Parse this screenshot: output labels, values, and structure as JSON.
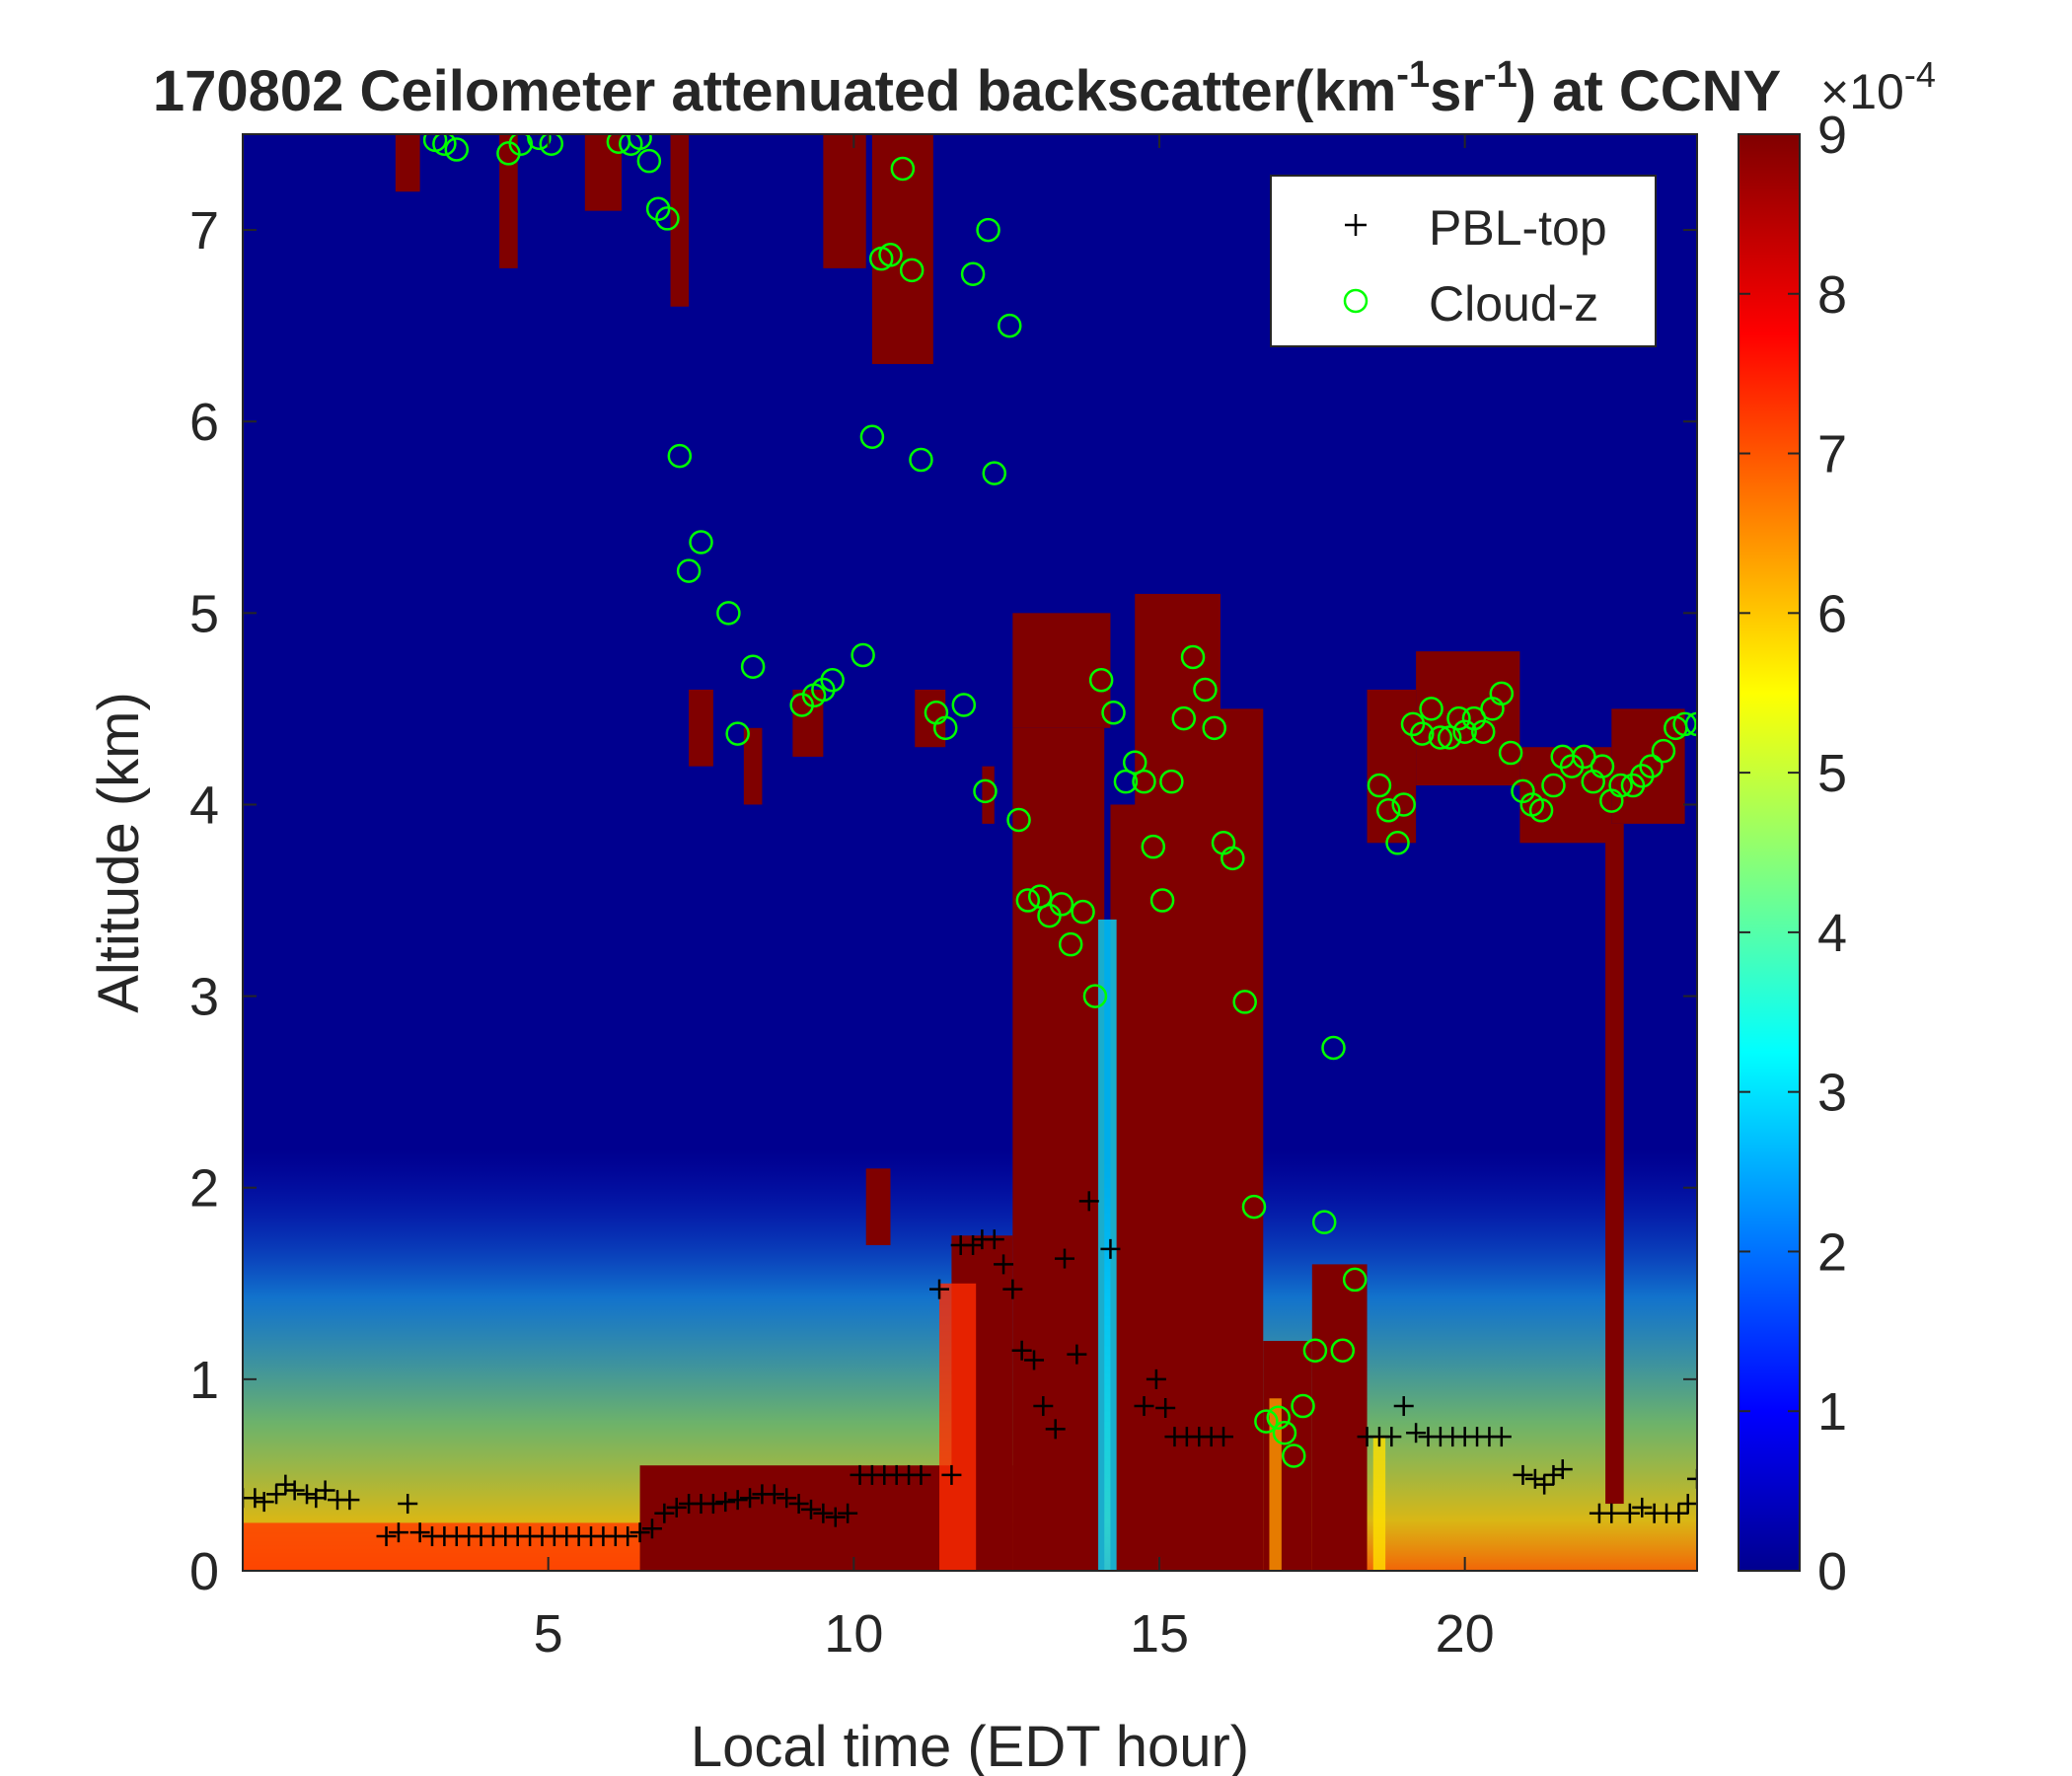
{
  "chart_data": {
    "type": "heatmap",
    "title": {
      "prefix": "170802 Ceilometer attenuated backscatter(km",
      "sup1": "-1",
      "mid": "sr",
      "sup2": "-1",
      "suffix": ") at CCNY"
    },
    "xlabel": "Local time (EDT hour)",
    "ylabel": "Altitude (km)",
    "xlim": [
      0,
      23.8
    ],
    "ylim": [
      0,
      7.5
    ],
    "x_ticks": [
      5,
      10,
      15,
      20
    ],
    "y_ticks": [
      0,
      1,
      2,
      3,
      4,
      5,
      6,
      7
    ],
    "colorbar": {
      "colormap": "jet",
      "range": [
        0,
        9
      ],
      "ticks": [
        0,
        1,
        2,
        3,
        4,
        5,
        6,
        7,
        8,
        9
      ],
      "exponent_label": {
        "base": "×10",
        "exp": "-4"
      }
    },
    "legend": {
      "location": "top-right",
      "entries": [
        {
          "label": "PBL-top",
          "marker": "+",
          "color": "#000000"
        },
        {
          "label": "Cloud-z",
          "marker": "o",
          "color": "#00ff00"
        }
      ]
    },
    "series": [
      {
        "name": "PBL-top",
        "points": [
          [
            0.0,
            0.38
          ],
          [
            0.2,
            0.38
          ],
          [
            0.35,
            0.36
          ],
          [
            0.55,
            0.4
          ],
          [
            0.7,
            0.45
          ],
          [
            0.85,
            0.42
          ],
          [
            1.05,
            0.4
          ],
          [
            1.2,
            0.38
          ],
          [
            1.35,
            0.42
          ],
          [
            1.55,
            0.37
          ],
          [
            1.75,
            0.37
          ],
          [
            2.35,
            0.18
          ],
          [
            2.55,
            0.2
          ],
          [
            2.7,
            0.35
          ],
          [
            2.9,
            0.2
          ],
          [
            3.1,
            0.18
          ],
          [
            3.3,
            0.18
          ],
          [
            3.5,
            0.18
          ],
          [
            3.7,
            0.18
          ],
          [
            3.9,
            0.18
          ],
          [
            4.1,
            0.18
          ],
          [
            4.3,
            0.18
          ],
          [
            4.5,
            0.18
          ],
          [
            4.7,
            0.18
          ],
          [
            4.9,
            0.18
          ],
          [
            5.1,
            0.18
          ],
          [
            5.3,
            0.18
          ],
          [
            5.5,
            0.18
          ],
          [
            5.7,
            0.18
          ],
          [
            5.9,
            0.18
          ],
          [
            6.1,
            0.18
          ],
          [
            6.3,
            0.18
          ],
          [
            6.5,
            0.2
          ],
          [
            6.7,
            0.22
          ],
          [
            6.9,
            0.3
          ],
          [
            7.1,
            0.33
          ],
          [
            7.3,
            0.35
          ],
          [
            7.5,
            0.35
          ],
          [
            7.7,
            0.35
          ],
          [
            7.9,
            0.36
          ],
          [
            8.1,
            0.37
          ],
          [
            8.3,
            0.38
          ],
          [
            8.5,
            0.4
          ],
          [
            8.7,
            0.4
          ],
          [
            8.9,
            0.38
          ],
          [
            9.1,
            0.35
          ],
          [
            9.3,
            0.32
          ],
          [
            9.5,
            0.3
          ],
          [
            9.7,
            0.28
          ],
          [
            9.9,
            0.3
          ],
          [
            10.1,
            0.5
          ],
          [
            10.3,
            0.5
          ],
          [
            10.5,
            0.5
          ],
          [
            10.7,
            0.5
          ],
          [
            10.9,
            0.5
          ],
          [
            11.1,
            0.5
          ],
          [
            11.4,
            1.47
          ],
          [
            11.6,
            0.5
          ],
          [
            11.75,
            1.7
          ],
          [
            11.95,
            1.7
          ],
          [
            12.1,
            1.73
          ],
          [
            12.3,
            1.73
          ],
          [
            12.45,
            1.6
          ],
          [
            12.6,
            1.47
          ],
          [
            12.75,
            1.15
          ],
          [
            12.95,
            1.1
          ],
          [
            13.1,
            0.86
          ],
          [
            13.3,
            0.74
          ],
          [
            13.45,
            1.63
          ],
          [
            13.65,
            1.13
          ],
          [
            13.85,
            1.93
          ],
          [
            14.2,
            1.68
          ],
          [
            14.75,
            0.86
          ],
          [
            14.95,
            1.0
          ],
          [
            15.1,
            0.85
          ],
          [
            15.25,
            0.7
          ],
          [
            15.45,
            0.7
          ],
          [
            15.65,
            0.7
          ],
          [
            15.85,
            0.7
          ],
          [
            16.05,
            0.7
          ],
          [
            18.4,
            0.7
          ],
          [
            18.6,
            0.7
          ],
          [
            18.8,
            0.7
          ],
          [
            19.0,
            0.86
          ],
          [
            19.2,
            0.72
          ],
          [
            19.4,
            0.7
          ],
          [
            19.6,
            0.7
          ],
          [
            19.8,
            0.7
          ],
          [
            20.0,
            0.7
          ],
          [
            20.2,
            0.7
          ],
          [
            20.4,
            0.7
          ],
          [
            20.6,
            0.7
          ],
          [
            20.95,
            0.5
          ],
          [
            21.15,
            0.48
          ],
          [
            21.3,
            0.45
          ],
          [
            21.45,
            0.5
          ],
          [
            21.6,
            0.53
          ],
          [
            22.2,
            0.3
          ],
          [
            22.4,
            0.3
          ],
          [
            22.7,
            0.3
          ],
          [
            22.9,
            0.33
          ],
          [
            23.1,
            0.3
          ],
          [
            23.3,
            0.3
          ],
          [
            23.5,
            0.3
          ],
          [
            23.65,
            0.35
          ],
          [
            23.8,
            0.48
          ]
        ]
      },
      {
        "name": "Cloud-z",
        "points": [
          [
            3.15,
            7.47
          ],
          [
            3.3,
            7.45
          ],
          [
            3.5,
            7.42
          ],
          [
            4.35,
            7.4
          ],
          [
            4.55,
            7.45
          ],
          [
            4.85,
            7.48
          ],
          [
            5.05,
            7.45
          ],
          [
            6.15,
            7.46
          ],
          [
            6.35,
            7.45
          ],
          [
            6.5,
            7.48
          ],
          [
            6.65,
            7.36
          ],
          [
            6.8,
            7.11
          ],
          [
            6.95,
            7.06
          ],
          [
            7.15,
            5.82
          ],
          [
            7.3,
            5.22
          ],
          [
            7.5,
            5.37
          ],
          [
            7.95,
            5.0
          ],
          [
            8.1,
            4.37
          ],
          [
            8.35,
            4.72
          ],
          [
            9.15,
            4.52
          ],
          [
            9.35,
            4.57
          ],
          [
            9.5,
            4.6
          ],
          [
            9.65,
            4.65
          ],
          [
            10.15,
            4.78
          ],
          [
            10.3,
            5.92
          ],
          [
            10.45,
            6.85
          ],
          [
            10.6,
            6.87
          ],
          [
            10.8,
            7.32
          ],
          [
            10.95,
            6.79
          ],
          [
            11.1,
            5.8
          ],
          [
            11.35,
            4.48
          ],
          [
            11.5,
            4.4
          ],
          [
            11.8,
            4.52
          ],
          [
            12.15,
            4.07
          ],
          [
            12.3,
            5.73
          ],
          [
            11.95,
            6.77
          ],
          [
            12.2,
            7.0
          ],
          [
            12.55,
            6.5
          ],
          [
            12.7,
            3.92
          ],
          [
            12.85,
            3.5
          ],
          [
            13.05,
            3.52
          ],
          [
            13.2,
            3.42
          ],
          [
            13.4,
            3.48
          ],
          [
            13.55,
            3.27
          ],
          [
            13.75,
            3.44
          ],
          [
            13.95,
            3.0
          ],
          [
            14.05,
            4.65
          ],
          [
            14.25,
            4.48
          ],
          [
            14.45,
            4.12
          ],
          [
            14.6,
            4.22
          ],
          [
            14.75,
            4.12
          ],
          [
            14.9,
            3.78
          ],
          [
            15.05,
            3.5
          ],
          [
            15.2,
            4.12
          ],
          [
            15.4,
            4.45
          ],
          [
            15.55,
            4.77
          ],
          [
            15.75,
            4.6
          ],
          [
            15.9,
            4.4
          ],
          [
            16.05,
            3.8
          ],
          [
            16.2,
            3.72
          ],
          [
            16.4,
            2.97
          ],
          [
            16.55,
            1.9
          ],
          [
            16.75,
            0.78
          ],
          [
            16.95,
            0.8
          ],
          [
            17.05,
            0.72
          ],
          [
            17.2,
            0.6
          ],
          [
            17.35,
            0.86
          ],
          [
            17.55,
            1.15
          ],
          [
            17.7,
            1.82
          ],
          [
            17.85,
            2.73
          ],
          [
            18.0,
            1.15
          ],
          [
            18.2,
            1.52
          ],
          [
            18.6,
            4.1
          ],
          [
            18.75,
            3.97
          ],
          [
            18.9,
            3.8
          ],
          [
            19.0,
            4.0
          ],
          [
            19.15,
            4.42
          ],
          [
            19.3,
            4.37
          ],
          [
            19.45,
            4.5
          ],
          [
            19.6,
            4.35
          ],
          [
            19.75,
            4.35
          ],
          [
            19.9,
            4.45
          ],
          [
            20.0,
            4.38
          ],
          [
            20.15,
            4.45
          ],
          [
            20.3,
            4.38
          ],
          [
            20.45,
            4.5
          ],
          [
            20.6,
            4.58
          ],
          [
            20.75,
            4.27
          ],
          [
            20.95,
            4.07
          ],
          [
            21.1,
            4.0
          ],
          [
            21.25,
            3.97
          ],
          [
            21.45,
            4.1
          ],
          [
            21.6,
            4.25
          ],
          [
            21.75,
            4.2
          ],
          [
            21.95,
            4.25
          ],
          [
            22.1,
            4.12
          ],
          [
            22.25,
            4.2
          ],
          [
            22.4,
            4.02
          ],
          [
            22.55,
            4.1
          ],
          [
            22.75,
            4.1
          ],
          [
            22.9,
            4.15
          ],
          [
            23.05,
            4.2
          ],
          [
            23.25,
            4.28
          ],
          [
            23.45,
            4.4
          ],
          [
            23.6,
            4.42
          ],
          [
            23.8,
            4.42
          ]
        ]
      }
    ]
  }
}
